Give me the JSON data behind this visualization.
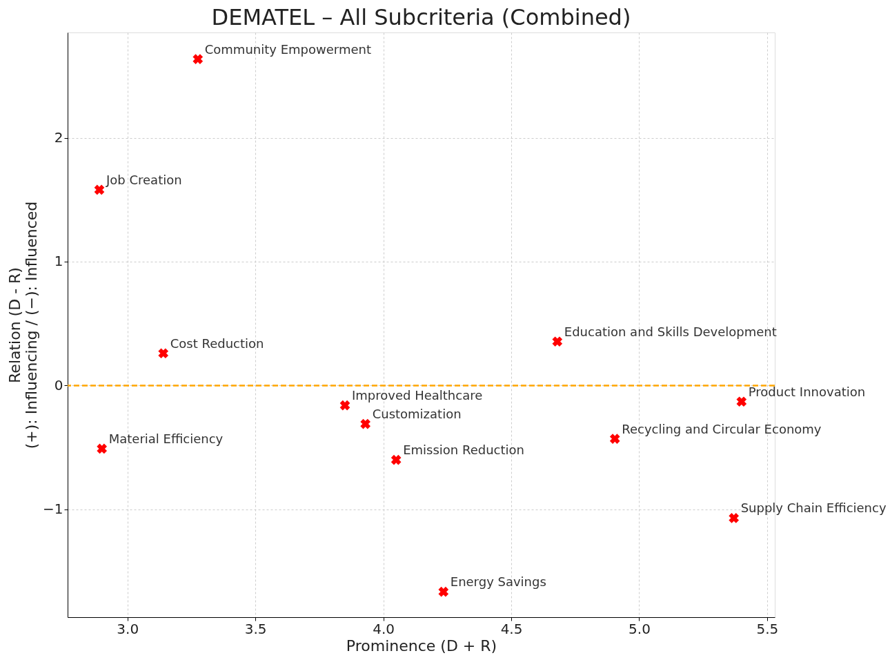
{
  "chart_data": {
    "type": "scatter",
    "title": "DEMATEL – All Subcriteria (Combined)",
    "xlabel": "Prominence (D + R)",
    "ylabel": "Relation (D - R)\n(+): Influencing / (−): Influenced",
    "x": [
      3.275,
      2.89,
      3.14,
      2.9,
      3.85,
      3.93,
      4.05,
      4.235,
      4.68,
      4.905,
      5.4,
      5.37
    ],
    "series": [
      {
        "color": "#ff0000",
        "values": [
          2.635,
          1.58,
          0.26,
          -0.51,
          -0.16,
          -0.31,
          -0.6,
          -1.665,
          0.355,
          -0.43,
          -0.13,
          -1.07
        ]
      }
    ],
    "marker": "cross",
    "xlim": [
      2.766,
      5.53
    ],
    "ylim": [
      -1.87,
      2.85
    ],
    "xticks": [
      {
        "value": 3,
        "label": "3.0"
      },
      {
        "value": 3.5,
        "label": "3.5"
      },
      {
        "value": 4,
        "label": "4.0"
      },
      {
        "value": 4.5,
        "label": "4.5"
      },
      {
        "value": 5,
        "label": "5.0"
      },
      {
        "value": 5.5,
        "label": "5.5"
      }
    ],
    "yticks": [
      {
        "value": -1,
        "label": "−1"
      },
      0,
      1,
      2
    ],
    "grid": true,
    "ref_lines": [
      {
        "axis": "y",
        "value": 0,
        "color": "#ffa500",
        "line_style": "dashed"
      }
    ],
    "annotations": [
      {
        "text": "Community Empowerment",
        "x": 3.275,
        "y": 2.635
      },
      {
        "text": "Job Creation",
        "x": 2.89,
        "y": 1.58
      },
      {
        "text": "Cost Reduction",
        "x": 3.14,
        "y": 0.26
      },
      {
        "text": "Material Efficiency",
        "x": 2.9,
        "y": -0.51
      },
      {
        "text": "Improved Healthcare",
        "x": 3.85,
        "y": -0.16
      },
      {
        "text": "Customization",
        "x": 3.93,
        "y": -0.31
      },
      {
        "text": "Emission Reduction",
        "x": 4.05,
        "y": -0.6
      },
      {
        "text": "Energy Savings",
        "x": 4.235,
        "y": -1.665
      },
      {
        "text": "Education and Skills Development",
        "x": 4.68,
        "y": 0.355
      },
      {
        "text": "Recycling and Circular Economy",
        "x": 4.905,
        "y": -0.43
      },
      {
        "text": "Product Innovation",
        "x": 5.4,
        "y": -0.13
      },
      {
        "text": "Supply Chain Efficiency",
        "x": 5.37,
        "y": -1.07
      }
    ]
  }
}
